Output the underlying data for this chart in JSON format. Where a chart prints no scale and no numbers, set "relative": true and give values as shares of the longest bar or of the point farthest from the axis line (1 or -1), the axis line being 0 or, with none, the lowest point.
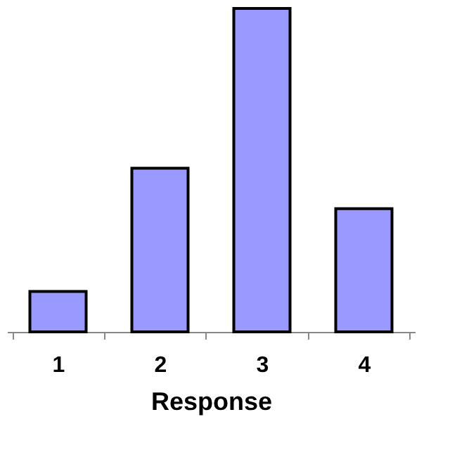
{
  "chart_data": {
    "type": "bar",
    "xlabel": "Response",
    "categories": [
      "1",
      "2",
      "3",
      "4"
    ],
    "values": [
      0.125,
      0.506,
      1,
      0.381
    ],
    "color": "#9999ff",
    "relative": true,
    "grid": false
  }
}
